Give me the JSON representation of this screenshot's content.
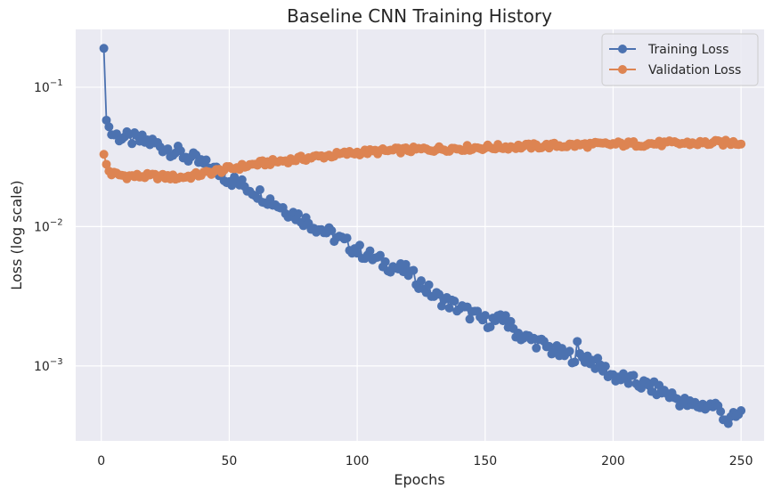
{
  "chart_data": {
    "type": "line",
    "title": "Baseline CNN Training History",
    "xlabel": "Epochs",
    "ylabel": "Loss (log scale)",
    "xlim": [
      -10,
      259
    ],
    "ylim": [
      0.00029,
      0.26
    ],
    "yscale": "log",
    "grid": true,
    "legend_position": "top-right",
    "x_ticks": [
      0,
      50,
      100,
      150,
      200,
      250
    ],
    "y_ticks": [
      0.001,
      0.01,
      0.1
    ],
    "y_tick_labels": [
      {
        "base": "10",
        "exp": "−3"
      },
      {
        "base": "10",
        "exp": "−2"
      },
      {
        "base": "10",
        "exp": "−1"
      }
    ],
    "epochs": {
      "start": 1,
      "end": 250
    },
    "series": [
      {
        "name": "Training Loss",
        "color": "#4c72b0",
        "anchors": [
          [
            1,
            0.19
          ],
          [
            2,
            0.058
          ],
          [
            3,
            0.052
          ],
          [
            4,
            0.047
          ],
          [
            6,
            0.045
          ],
          [
            10,
            0.043
          ],
          [
            20,
            0.04
          ],
          [
            28,
            0.035
          ],
          [
            35,
            0.031
          ],
          [
            45,
            0.025
          ],
          [
            50,
            0.022
          ],
          [
            60,
            0.018
          ],
          [
            70,
            0.014
          ],
          [
            80,
            0.011
          ],
          [
            90,
            0.0087
          ],
          [
            100,
            0.0068
          ],
          [
            110,
            0.0055
          ],
          [
            120,
            0.0047
          ],
          [
            130,
            0.0032
          ],
          [
            140,
            0.0026
          ],
          [
            150,
            0.0021
          ],
          [
            157,
            0.0021
          ],
          [
            160,
            0.0019
          ],
          [
            165,
            0.0016
          ],
          [
            170,
            0.0015
          ],
          [
            180,
            0.0012
          ],
          [
            190,
            0.00115
          ],
          [
            200,
            0.00085
          ],
          [
            210,
            0.00075
          ],
          [
            220,
            0.00065
          ],
          [
            230,
            0.00052
          ],
          [
            240,
            0.00052
          ],
          [
            243,
            0.00045
          ],
          [
            245,
            0.0004
          ],
          [
            250,
            0.00045
          ]
        ],
        "outliers": [
          [
            186,
            0.0015
          ],
          [
            158,
            0.0023
          ]
        ],
        "jitter": 0.05
      },
      {
        "name": "Validation Loss",
        "color": "#dd8452",
        "anchors": [
          [
            1,
            0.033
          ],
          [
            2,
            0.028
          ],
          [
            3,
            0.025
          ],
          [
            4,
            0.024
          ],
          [
            10,
            0.023
          ],
          [
            20,
            0.023
          ],
          [
            30,
            0.0225
          ],
          [
            35,
            0.023
          ],
          [
            45,
            0.025
          ],
          [
            60,
            0.028
          ],
          [
            80,
            0.031
          ],
          [
            100,
            0.034
          ],
          [
            120,
            0.0355
          ],
          [
            150,
            0.037
          ],
          [
            175,
            0.038
          ],
          [
            200,
            0.039
          ],
          [
            250,
            0.04
          ]
        ],
        "outliers": [],
        "jitter": 0.02
      }
    ]
  }
}
